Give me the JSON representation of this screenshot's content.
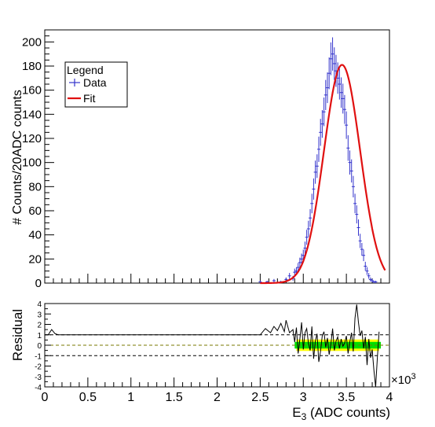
{
  "chart_data": [
    {
      "panel": "main",
      "type": "histogram-with-fit",
      "ylabel": "# Counts/20ADC counts",
      "xlim": [
        0,
        4000
      ],
      "ylim": [
        0,
        210
      ],
      "yticks": [
        0,
        20,
        40,
        60,
        80,
        100,
        120,
        140,
        160,
        180,
        200
      ],
      "legend": {
        "title": "Legend",
        "position": "top-left",
        "entries": [
          {
            "label": "Data",
            "color": "#3333cc",
            "style": "errorbar"
          },
          {
            "label": "Fit",
            "color": "#e01010",
            "style": "line"
          }
        ]
      },
      "series": [
        {
          "name": "Data",
          "color": "#3333cc",
          "x": [
            2500,
            2580,
            2660,
            2740,
            2800,
            2840,
            2880,
            2900,
            2920,
            2940,
            2960,
            2980,
            3000,
            3020,
            3040,
            3060,
            3080,
            3100,
            3120,
            3140,
            3160,
            3180,
            3200,
            3220,
            3240,
            3260,
            3280,
            3300,
            3320,
            3340,
            3360,
            3380,
            3400,
            3420,
            3440,
            3460,
            3480,
            3500,
            3520,
            3540,
            3560,
            3580,
            3600,
            3620,
            3640,
            3660,
            3680,
            3700,
            3720,
            3740,
            3760,
            3780,
            3800,
            3820,
            3840
          ],
          "y": [
            1,
            1,
            2,
            1,
            3,
            6,
            4,
            9,
            10,
            13,
            17,
            20,
            23,
            29,
            38,
            45,
            54,
            66,
            78,
            92,
            97,
            111,
            125,
            132,
            142,
            156,
            162,
            174,
            186,
            190,
            182,
            176,
            170,
            165,
            158,
            153,
            144,
            131,
            112,
            100,
            93,
            80,
            66,
            57,
            46,
            35,
            28,
            23,
            14,
            10,
            6,
            3,
            2,
            1,
            1
          ],
          "err": [
            1,
            1,
            1.4,
            1,
            1.7,
            2.4,
            2,
            3,
            3.2,
            3.6,
            4.1,
            4.5,
            4.8,
            5.4,
            6.2,
            6.7,
            7.3,
            8.1,
            8.8,
            9.6,
            9.8,
            10.5,
            11.2,
            11.5,
            11.9,
            12.5,
            12.7,
            13.2,
            13.6,
            13.8,
            13.5,
            13.3,
            13,
            12.8,
            12.6,
            12.4,
            12,
            11.4,
            10.6,
            10,
            9.6,
            8.9,
            8.1,
            7.5,
            6.8,
            5.9,
            5.3,
            4.8,
            3.7,
            3.2,
            2.4,
            1.7,
            1.4,
            1,
            1
          ]
        },
        {
          "name": "Fit",
          "color": "#e01010",
          "function": "gaussian",
          "amplitude": 181,
          "mean": 3450,
          "sigma": 210,
          "x_range": [
            2500,
            3950
          ]
        }
      ]
    },
    {
      "panel": "residual",
      "type": "line",
      "ylabel": "Residual",
      "xlabel": "E",
      "xlabel_sub": "3",
      "xlabel_rest": " (ADC counts)",
      "x_exponent_base": "×10",
      "x_exponent": "3",
      "xlim": [
        0,
        4000
      ],
      "ylim": [
        -4,
        4
      ],
      "xticks": [
        0,
        500,
        1000,
        1500,
        2000,
        2500,
        3000,
        3500,
        4000
      ],
      "xtick_labels": [
        "0",
        "0.5",
        "1",
        "1.5",
        "2",
        "2.5",
        "3",
        "3.5",
        "4"
      ],
      "yticks": [
        -4,
        -3,
        -2,
        -1,
        0,
        1,
        2,
        3,
        4
      ],
      "reference_lines": [
        {
          "y": 1,
          "color": "#000000",
          "style": "dashed"
        },
        {
          "y": 0,
          "color": "#7a7a00",
          "style": "dashed"
        },
        {
          "y": -1,
          "color": "#000000",
          "style": "dashed"
        }
      ],
      "band_2sigma": {
        "color": "#ffff00",
        "x_range": [
          2920,
          3880
        ],
        "half_width": 0.55
      },
      "band_1sigma": {
        "color": "#00dd00",
        "x_range": [
          2900,
          3900
        ],
        "half_width": 0.32
      },
      "series": [
        {
          "name": "residual",
          "color": "#000000",
          "x": [
            0,
            40,
            80,
            120,
            160,
            2500,
            2560,
            2620,
            2660,
            2700,
            2740,
            2780,
            2800,
            2840,
            2880,
            2900,
            2920,
            2940,
            2960,
            2980,
            3000,
            3020,
            3040,
            3060,
            3080,
            3100,
            3120,
            3140,
            3160,
            3180,
            3200,
            3220,
            3240,
            3260,
            3280,
            3300,
            3320,
            3340,
            3360,
            3380,
            3400,
            3420,
            3440,
            3460,
            3480,
            3500,
            3520,
            3540,
            3560,
            3580,
            3600,
            3620,
            3640,
            3660,
            3680,
            3700,
            3720,
            3740,
            3760,
            3780,
            3800,
            3820,
            3840,
            3860,
            3880
          ],
          "y": [
            1,
            1,
            1.5,
            1.1,
            1,
            1,
            1.6,
            1.2,
            1.8,
            1.4,
            2.1,
            1.3,
            2.4,
            1.2,
            1.5,
            0.3,
            1.7,
            -0.8,
            0.6,
            2.2,
            -0.4,
            1.2,
            1.6,
            0.2,
            -0.5,
            1.8,
            -1.3,
            0.4,
            1.1,
            -1.6,
            -0.6,
            0.9,
            1.3,
            -0.2,
            0.7,
            -0.9,
            0.1,
            1.6,
            -0.5,
            0.4,
            0.8,
            -0.3,
            0.6,
            -0.1,
            0.2,
            0.9,
            -0.8,
            0.3,
            1.2,
            -0.6,
            2.6,
            3.9,
            2.2,
            0.9,
            1.4,
            -0.3,
            0.8,
            -1.9,
            0.6,
            -1.2,
            -0.4,
            -2.4,
            -4,
            -1.2,
            1.3
          ]
        }
      ]
    }
  ]
}
